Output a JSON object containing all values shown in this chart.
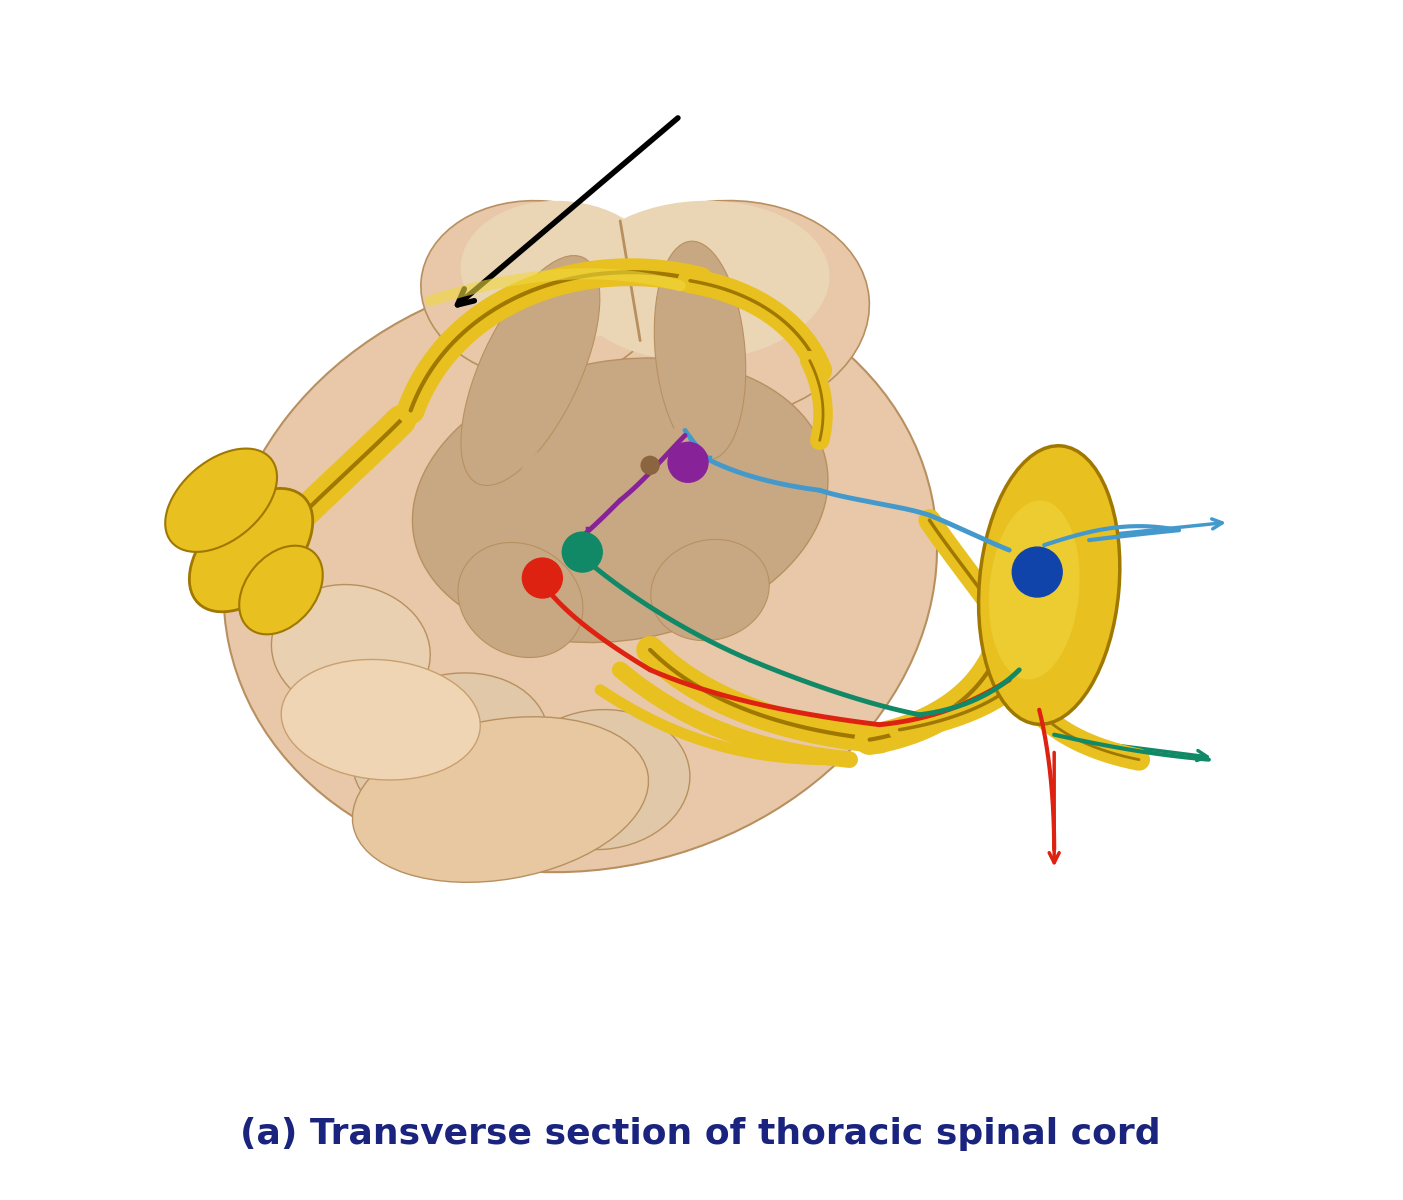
{
  "title": "(a) Transverse section of thoracic spinal cord",
  "title_color": "#1a237e",
  "title_fontsize": 26,
  "background_color": "#ffffff",
  "cord_outer": "#e8c8a8",
  "cord_outer2": "#d4a880",
  "cord_inner_top": "#c8a882",
  "cord_inner_mid": "#b8906a",
  "cord_bottom": "#e0b890",
  "cord_bottom2": "#f0d0b0",
  "cord_edge": "#b89060",
  "yellow": "#e8c020",
  "yellow_mid": "#d4a800",
  "yellow_dark": "#a07800",
  "yellow_light": "#f0d840",
  "blue": "#4499cc",
  "red": "#dd2211",
  "green": "#118866",
  "purple": "#882299",
  "blue_dot": "#1144aa",
  "black": "#111111"
}
